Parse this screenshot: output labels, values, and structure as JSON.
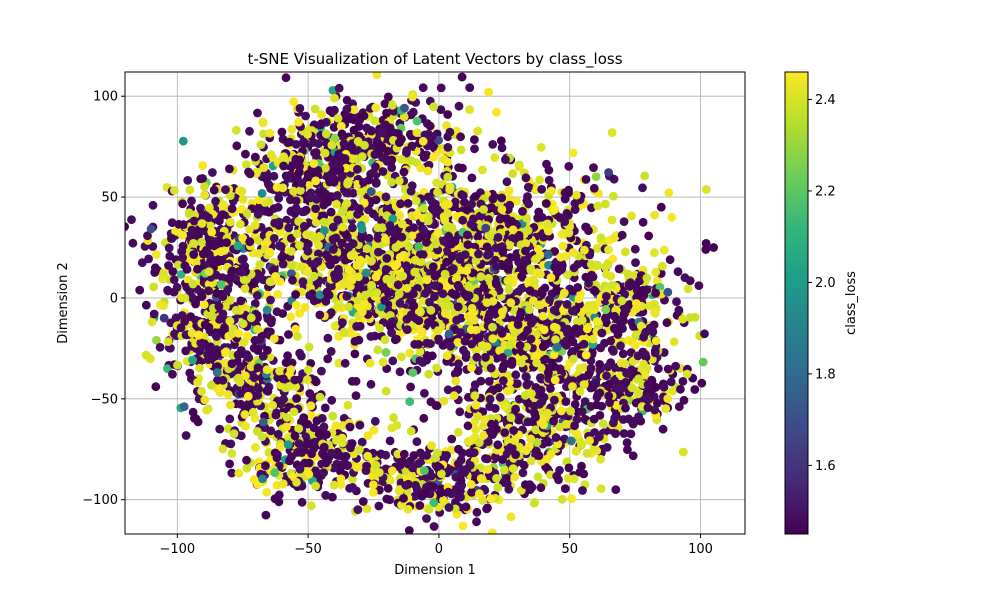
{
  "chart_data": {
    "type": "scatter",
    "title": "t-SNE Visualization of Latent Vectors by class_loss",
    "xlabel": "Dimension 1",
    "ylabel": "Dimension 2",
    "xlim": [
      -120,
      117
    ],
    "ylim": [
      -117,
      112
    ],
    "xticks": [
      -100,
      -50,
      0,
      50,
      100
    ],
    "yticks": [
      -100,
      -50,
      0,
      50,
      100
    ],
    "grid": true,
    "colorbar": {
      "label": "class_loss",
      "range": [
        1.45,
        2.46
      ],
      "ticks": [
        1.6,
        1.8,
        2.0,
        2.2,
        2.4
      ],
      "colormap": "viridis",
      "colors": [
        "#440154",
        "#482878",
        "#3e4989",
        "#31688e",
        "#26828e",
        "#1f9e89",
        "#35b779",
        "#6ece58",
        "#b5de2b",
        "#fde725"
      ]
    },
    "clusters": [
      {
        "x": -47,
        "y": 65,
        "spread": [
          14,
          14
        ],
        "yellow_frac": 0.35
      },
      {
        "x": -85,
        "y": 25,
        "spread": [
          14,
          18
        ],
        "yellow_frac": 0.35
      },
      {
        "x": -85,
        "y": -20,
        "spread": [
          11,
          16
        ],
        "yellow_frac": 0.3
      },
      {
        "x": -50,
        "y": -75,
        "spread": [
          14,
          12
        ],
        "yellow_frac": 0.4
      },
      {
        "x": 0,
        "y": -90,
        "spread": [
          18,
          10
        ],
        "yellow_frac": 0.35
      },
      {
        "x": 35,
        "y": -65,
        "spread": [
          15,
          14
        ],
        "yellow_frac": 0.4
      },
      {
        "x": 75,
        "y": -45,
        "spread": [
          10,
          12
        ],
        "yellow_frac": 0.3
      },
      {
        "x": 20,
        "y": 30,
        "spread": [
          25,
          18
        ],
        "yellow_frac": 0.45
      },
      {
        "x": 30,
        "y": -20,
        "spread": [
          20,
          18
        ],
        "yellow_frac": 0.4
      },
      {
        "x": -30,
        "y": 20,
        "spread": [
          22,
          16
        ],
        "yellow_frac": 0.5
      },
      {
        "x": -10,
        "y": 0,
        "spread": [
          20,
          14
        ],
        "yellow_frac": 0.5
      },
      {
        "x": -65,
        "y": -45,
        "spread": [
          10,
          10
        ],
        "yellow_frac": 0.4
      },
      {
        "x": -20,
        "y": 80,
        "spread": [
          15,
          10
        ],
        "yellow_frac": 0.35
      },
      {
        "x": 70,
        "y": -5,
        "spread": [
          12,
          12
        ],
        "yellow_frac": 0.4
      }
    ],
    "outliers": [
      {
        "x": 102,
        "y": 24,
        "value": 1.45
      },
      {
        "x": 105,
        "y": 25,
        "value": 1.45
      },
      {
        "x": 89,
        "y": 40,
        "value": 2.45
      },
      {
        "x": 85,
        "y": 45,
        "value": 1.45
      },
      {
        "x": -108,
        "y": -21,
        "value": 2.3
      },
      {
        "x": -105,
        "y": -10,
        "value": 1.6
      },
      {
        "x": -105,
        "y": -2,
        "value": 2.35
      },
      {
        "x": 19,
        "y": 102,
        "value": 2.45
      },
      {
        "x": 22,
        "y": 92,
        "value": 2.45
      },
      {
        "x": -10,
        "y": -37,
        "value": 2.2
      },
      {
        "x": 5,
        "y": 55,
        "value": 2.1
      }
    ]
  }
}
